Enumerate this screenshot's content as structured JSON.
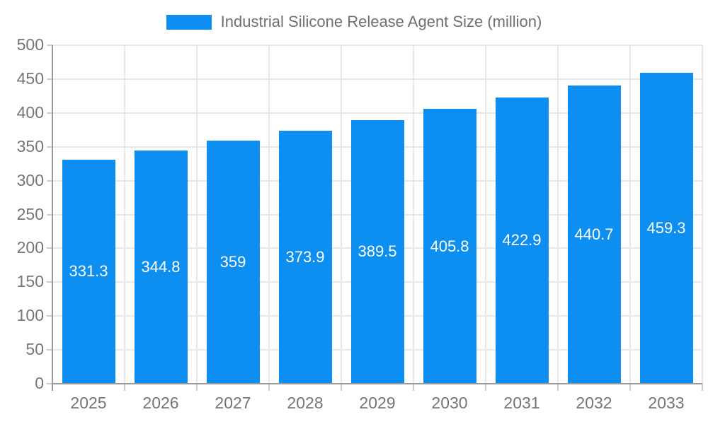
{
  "legend": {
    "label": "Industrial Silicone Release Agent Size (million)"
  },
  "chart_data": {
    "type": "bar",
    "title": "Industrial Silicone Release Agent Size (million)",
    "categories": [
      "2025",
      "2026",
      "2027",
      "2028",
      "2029",
      "2030",
      "2031",
      "2032",
      "2033"
    ],
    "values": [
      331.3,
      344.8,
      359,
      373.9,
      389.5,
      405.8,
      422.9,
      440.7,
      459.3
    ],
    "series": [
      {
        "name": "Industrial Silicone Release Agent Size (million)",
        "values": [
          331.3,
          344.8,
          359,
          373.9,
          389.5,
          405.8,
          422.9,
          440.7,
          459.3
        ]
      }
    ],
    "xlabel": "",
    "ylabel": "",
    "ylim": [
      0,
      500
    ],
    "yticks": [
      0,
      50,
      100,
      150,
      200,
      250,
      300,
      350,
      400,
      450,
      500
    ],
    "grid": true,
    "legend_position": "top",
    "bar_value_labels": [
      "331.3",
      "344.8",
      "359",
      "373.9",
      "389.5",
      "405.8",
      "422.9",
      "440.7",
      "459.3"
    ],
    "bar_label_position": "inside-center"
  },
  "colors": {
    "bar": "#0d8ff2",
    "grid_line": "#e8e8e8",
    "axis_line": "#999999",
    "tick_mark": "#cccccc",
    "tick_text": "#757575",
    "bar_label_text": "#ffffff",
    "legend_text": "#707070"
  }
}
